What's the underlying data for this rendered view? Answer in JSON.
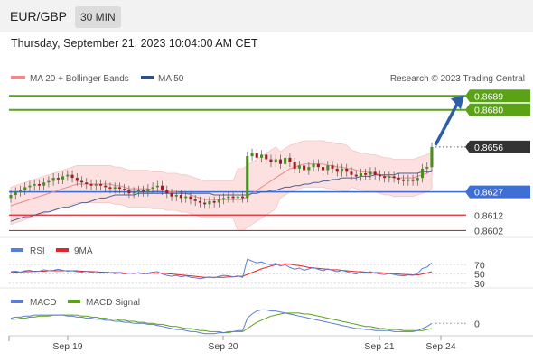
{
  "header": {
    "pair": "EUR/GBP",
    "timeframe": "30 MIN"
  },
  "datetime": "Thursday, September 21, 2023 10:04:00 AM CET",
  "legend": {
    "bb": "MA 20 + Bollinger Bands",
    "ma50": "MA 50",
    "rsi": "RSI",
    "rsi_ma": "9MA",
    "macd": "MACD",
    "macd_signal": "MACD Signal"
  },
  "watermark": "Research © 2023 Trading Central",
  "colors": {
    "green": "#5aa317",
    "blue": "#3f6ed6",
    "red": "#e0262c",
    "dark": "#333333",
    "arrow": "#2c5ea8",
    "bb_fill": "#fde0e0"
  },
  "chart_data": {
    "type": "candlestick",
    "x_ticks": [
      "Sep 19",
      "Sep 20",
      "Sep 21",
      "Sep 24"
    ],
    "ylim": [
      0.8597,
      0.8695
    ],
    "price_levels": [
      {
        "label": "0.8689",
        "value": 0.8689,
        "color": "#5aa317",
        "kind": "target"
      },
      {
        "label": "0.8680",
        "value": 0.868,
        "color": "#5aa317",
        "kind": "target"
      },
      {
        "label": "0.8656",
        "value": 0.8656,
        "color": "#333333",
        "kind": "last"
      },
      {
        "label": "0.8627",
        "value": 0.8627,
        "color": "#3f6ed6",
        "kind": "pivot"
      },
      {
        "label": "0.8612",
        "value": 0.8612,
        "color": "#e0262c",
        "kind": "support"
      },
      {
        "label": "0.8602",
        "value": 0.8602,
        "color": "#e0262c",
        "kind": "support"
      }
    ],
    "close": [
      0.8625,
      0.8627,
      0.8628,
      0.863,
      0.8631,
      0.8632,
      0.8631,
      0.8633,
      0.8634,
      0.8636,
      0.8635,
      0.8637,
      0.8638,
      0.8636,
      0.8634,
      0.8633,
      0.8632,
      0.8631,
      0.8632,
      0.8631,
      0.863,
      0.8629,
      0.863,
      0.8629,
      0.8628,
      0.8626,
      0.8627,
      0.8628,
      0.8627,
      0.8629,
      0.863,
      0.8631,
      0.8628,
      0.8626,
      0.8624,
      0.8625,
      0.8623,
      0.8624,
      0.8622,
      0.8621,
      0.862,
      0.8619,
      0.8621,
      0.862,
      0.8622,
      0.8623,
      0.8624,
      0.8623,
      0.8624,
      0.8623,
      0.865,
      0.8652,
      0.8649,
      0.8651,
      0.8648,
      0.8646,
      0.8648,
      0.8645,
      0.8649,
      0.8646,
      0.8642,
      0.8644,
      0.8641,
      0.8643,
      0.8645,
      0.8643,
      0.8641,
      0.8644,
      0.8642,
      0.864,
      0.8642,
      0.864,
      0.8638,
      0.8637,
      0.8639,
      0.8638,
      0.864,
      0.8638,
      0.8637,
      0.8636,
      0.8637,
      0.8636,
      0.8635,
      0.8634,
      0.8635,
      0.8634,
      0.8636,
      0.8642,
      0.8643,
      0.8656
    ],
    "ma20": [
      0.8618,
      0.8619,
      0.862,
      0.8621,
      0.8622,
      0.8623,
      0.8624,
      0.8625,
      0.8626,
      0.8627,
      0.8628,
      0.8629,
      0.863,
      0.8631,
      0.8632,
      0.8632,
      0.8632,
      0.8632,
      0.8632,
      0.8632,
      0.8632,
      0.8632,
      0.8631,
      0.8631,
      0.863,
      0.8629,
      0.8629,
      0.8629,
      0.8629,
      0.8629,
      0.8628,
      0.8628,
      0.8628,
      0.8627,
      0.8627,
      0.8627,
      0.8626,
      0.8626,
      0.8625,
      0.8624,
      0.8623,
      0.8622,
      0.8622,
      0.8622,
      0.8622,
      0.8622,
      0.8622,
      0.8622,
      0.8622,
      0.8622,
      0.8624,
      0.8626,
      0.8628,
      0.863,
      0.8632,
      0.8634,
      0.8636,
      0.8638,
      0.864,
      0.8642,
      0.8643,
      0.8644,
      0.8645,
      0.8645,
      0.8645,
      0.8645,
      0.8645,
      0.8644,
      0.8644,
      0.8643,
      0.8643,
      0.8642,
      0.8642,
      0.8641,
      0.864,
      0.864,
      0.8639,
      0.8639,
      0.8638,
      0.8637,
      0.8637,
      0.8636,
      0.8636,
      0.8636,
      0.8636,
      0.8636,
      0.8637,
      0.8638,
      0.8639,
      0.8641
    ],
    "ma50": [
      0.8608,
      0.8609,
      0.861,
      0.8611,
      0.8611,
      0.8612,
      0.8613,
      0.8614,
      0.8614,
      0.8615,
      0.8616,
      0.8617,
      0.8617,
      0.8618,
      0.8619,
      0.862,
      0.862,
      0.8621,
      0.8622,
      0.8623,
      0.8623,
      0.8624,
      0.8625,
      0.8625,
      0.8625,
      0.8625,
      0.8625,
      0.8626,
      0.8626,
      0.8626,
      0.8626,
      0.8626,
      0.8626,
      0.8626,
      0.8626,
      0.8626,
      0.8626,
      0.8626,
      0.8626,
      0.8626,
      0.8626,
      0.8626,
      0.8626,
      0.8625,
      0.8625,
      0.8625,
      0.8625,
      0.8625,
      0.8625,
      0.8625,
      0.8625,
      0.8626,
      0.8626,
      0.8627,
      0.8627,
      0.8628,
      0.8628,
      0.8629,
      0.863,
      0.863,
      0.8631,
      0.8631,
      0.8632,
      0.8632,
      0.8633,
      0.8633,
      0.8634,
      0.8634,
      0.8635,
      0.8635,
      0.8636,
      0.8636,
      0.8636,
      0.8636,
      0.8637,
      0.8637,
      0.8637,
      0.8638,
      0.8638,
      0.8638,
      0.8638,
      0.8638,
      0.8639,
      0.8639,
      0.8639,
      0.8639,
      0.8639,
      0.864,
      0.864,
      0.864
    ],
    "rsi": {
      "ylim": [
        20,
        90
      ],
      "levels": [
        70,
        50,
        30
      ],
      "rsi": [
        55,
        56,
        54,
        57,
        58,
        55,
        56,
        59,
        57,
        58,
        60,
        58,
        56,
        57,
        55,
        54,
        56,
        53,
        55,
        52,
        54,
        53,
        51,
        52,
        50,
        52,
        51,
        53,
        50,
        52,
        54,
        55,
        50,
        47,
        45,
        47,
        44,
        46,
        43,
        42,
        40,
        42,
        44,
        42,
        45,
        47,
        46,
        44,
        46,
        43,
        82,
        78,
        74,
        76,
        72,
        70,
        73,
        67,
        70,
        64,
        60,
        63,
        58,
        61,
        64,
        60,
        57,
        61,
        58,
        55,
        58,
        55,
        52,
        50,
        54,
        52,
        55,
        52,
        50,
        49,
        51,
        49,
        47,
        46,
        48,
        47,
        51,
        62,
        65,
        74
      ],
      "ma9": [
        53,
        54,
        54,
        55,
        55,
        56,
        56,
        56,
        57,
        57,
        57,
        57,
        57,
        57,
        57,
        56,
        56,
        55,
        55,
        54,
        54,
        53,
        53,
        53,
        52,
        52,
        52,
        52,
        51,
        51,
        52,
        52,
        52,
        51,
        50,
        49,
        48,
        47,
        46,
        45,
        44,
        43,
        43,
        43,
        43,
        43,
        44,
        44,
        45,
        45,
        49,
        53,
        57,
        61,
        64,
        67,
        70,
        71,
        72,
        71,
        69,
        68,
        66,
        64,
        63,
        62,
        61,
        60,
        59,
        59,
        58,
        57,
        56,
        55,
        55,
        54,
        53,
        53,
        53,
        52,
        51,
        50,
        50,
        49,
        49,
        48,
        48,
        50,
        52,
        55
      ]
    },
    "macd": {
      "ylim": [
        -0.0012,
        0.0016
      ],
      "zero_label": "0",
      "macd": [
        0.0005,
        0.0006,
        0.0006,
        0.0007,
        0.0007,
        0.0008,
        0.0008,
        0.0008,
        0.0008,
        0.0008,
        0.0008,
        0.0008,
        0.0007,
        0.0007,
        0.0006,
        0.0006,
        0.0005,
        0.0005,
        0.0004,
        0.0004,
        0.0003,
        0.0003,
        0.0002,
        0.0002,
        0.0001,
        0.0001,
        0.0,
        0.0,
        0.0,
        -0.0001,
        -0.0001,
        -0.0002,
        -0.0003,
        -0.0004,
        -0.0005,
        -0.0006,
        -0.0006,
        -0.0007,
        -0.0008,
        -0.0008,
        -0.0009,
        -0.001,
        -0.001,
        -0.001,
        -0.0009,
        -0.0009,
        -0.0008,
        -0.0008,
        -0.0007,
        -0.0007,
        0.0005,
        0.0009,
        0.0012,
        0.0013,
        0.0013,
        0.0012,
        0.0012,
        0.0011,
        0.001,
        0.0009,
        0.0008,
        0.0007,
        0.0006,
        0.0005,
        0.0004,
        0.0003,
        0.0002,
        0.0001,
        0.0,
        -0.0001,
        -0.0002,
        -0.0003,
        -0.0004,
        -0.0005,
        -0.0005,
        -0.0006,
        -0.0006,
        -0.0007,
        -0.0007,
        -0.0007,
        -0.0007,
        -0.0008,
        -0.0008,
        -0.0008,
        -0.0008,
        -0.0008,
        -0.0007,
        -0.0005,
        -0.0003,
        0.0
      ],
      "signal": [
        0.0004,
        0.0004,
        0.0005,
        0.0005,
        0.0006,
        0.0006,
        0.0007,
        0.0007,
        0.0007,
        0.0008,
        0.0008,
        0.0008,
        0.0008,
        0.0008,
        0.0008,
        0.0007,
        0.0007,
        0.0006,
        0.0006,
        0.0005,
        0.0005,
        0.0004,
        0.0004,
        0.0003,
        0.0003,
        0.0002,
        0.0002,
        0.0001,
        0.0001,
        0.0,
        0.0,
        -0.0001,
        -0.0001,
        -0.0002,
        -0.0003,
        -0.0003,
        -0.0004,
        -0.0005,
        -0.0005,
        -0.0006,
        -0.0007,
        -0.0007,
        -0.0008,
        -0.0008,
        -0.0008,
        -0.0009,
        -0.0009,
        -0.0008,
        -0.0008,
        -0.0008,
        -0.0005,
        -0.0002,
        0.0001,
        0.0003,
        0.0005,
        0.0007,
        0.0008,
        0.0009,
        0.001,
        0.001,
        0.001,
        0.001,
        0.0009,
        0.0009,
        0.0008,
        0.0007,
        0.0006,
        0.0005,
        0.0004,
        0.0003,
        0.0002,
        0.0001,
        0.0,
        -0.0001,
        -0.0002,
        -0.0003,
        -0.0003,
        -0.0004,
        -0.0005,
        -0.0005,
        -0.0006,
        -0.0006,
        -0.0006,
        -0.0007,
        -0.0007,
        -0.0007,
        -0.0007,
        -0.0007,
        -0.0006,
        -0.0005
      ]
    }
  }
}
